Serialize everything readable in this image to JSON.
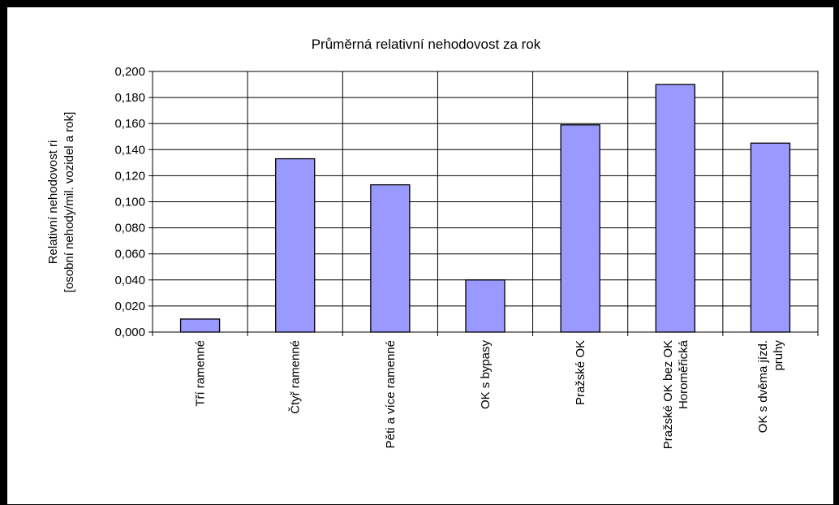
{
  "chart_data": {
    "type": "bar",
    "title": "Průměrná relativní nehodovost za rok",
    "ylabel_lines": [
      "Relativní nehodovost ri",
      "[osobní nehody/mil. vozidel a rok]"
    ],
    "xlabel": "",
    "categories": [
      [
        "Tří ramenné"
      ],
      [
        "Čtyř ramenné"
      ],
      [
        "Pěti a více ramenné"
      ],
      [
        "OK s bypasy"
      ],
      [
        "Pražské OK"
      ],
      [
        "Pražské OK bez OK",
        "Horoměřická"
      ],
      [
        "OK s dvěma jízd.",
        "pruhy"
      ]
    ],
    "values": [
      0.01,
      0.133,
      0.113,
      0.04,
      0.159,
      0.19,
      0.145
    ],
    "ylim": [
      0,
      0.2
    ],
    "yticks": [
      "0,000",
      "0,020",
      "0,040",
      "0,060",
      "0,080",
      "0,100",
      "0,120",
      "0,140",
      "0,160",
      "0,180",
      "0,200"
    ],
    "grid": true,
    "bar_color": "#9999ff",
    "bar_border": "#000000"
  }
}
